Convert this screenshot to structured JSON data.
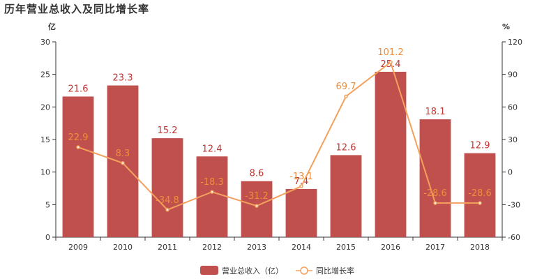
{
  "chart_data": {
    "type": "bar",
    "title": "历年营业总收入及同比增长率",
    "y_left_unit": "亿",
    "y_right_unit": "%",
    "categories": [
      "2009",
      "2010",
      "2011",
      "2012",
      "2013",
      "2014",
      "2015",
      "2016",
      "2017",
      "2018"
    ],
    "y_left_ticks": [
      "0",
      "5",
      "10",
      "15",
      "20",
      "25",
      "30"
    ],
    "y_right_ticks": [
      "-60",
      "-30",
      "0",
      "30",
      "60",
      "90",
      "120"
    ],
    "ylim_left": [
      0,
      30
    ],
    "ylim_right": [
      -60,
      120
    ],
    "series": [
      {
        "name": "营业总收入（亿）",
        "type": "bar",
        "axis": "left",
        "color": "#c0504d",
        "values": [
          21.6,
          23.3,
          15.2,
          12.4,
          8.6,
          7.4,
          12.6,
          25.4,
          18.1,
          12.9
        ],
        "labels": [
          "21.6",
          "23.3",
          "15.2",
          "12.4",
          "8.6",
          "7.4",
          "12.6",
          "25.4",
          "18.1",
          "12.9"
        ]
      },
      {
        "name": "同比增长率",
        "type": "line",
        "axis": "right",
        "color": "#f4a15d",
        "values": [
          22.9,
          8.3,
          -34.8,
          -18.3,
          -31.2,
          -13.1,
          69.7,
          101.2,
          -28.6,
          -28.6
        ],
        "labels": [
          "22.9",
          "8.3",
          "-34.8",
          "-18.3",
          "-31.2",
          "-13.1",
          "69.7",
          "101.2",
          "-28.6",
          "-28.6"
        ]
      }
    ],
    "grid": false,
    "legend_position": "bottom-center"
  }
}
